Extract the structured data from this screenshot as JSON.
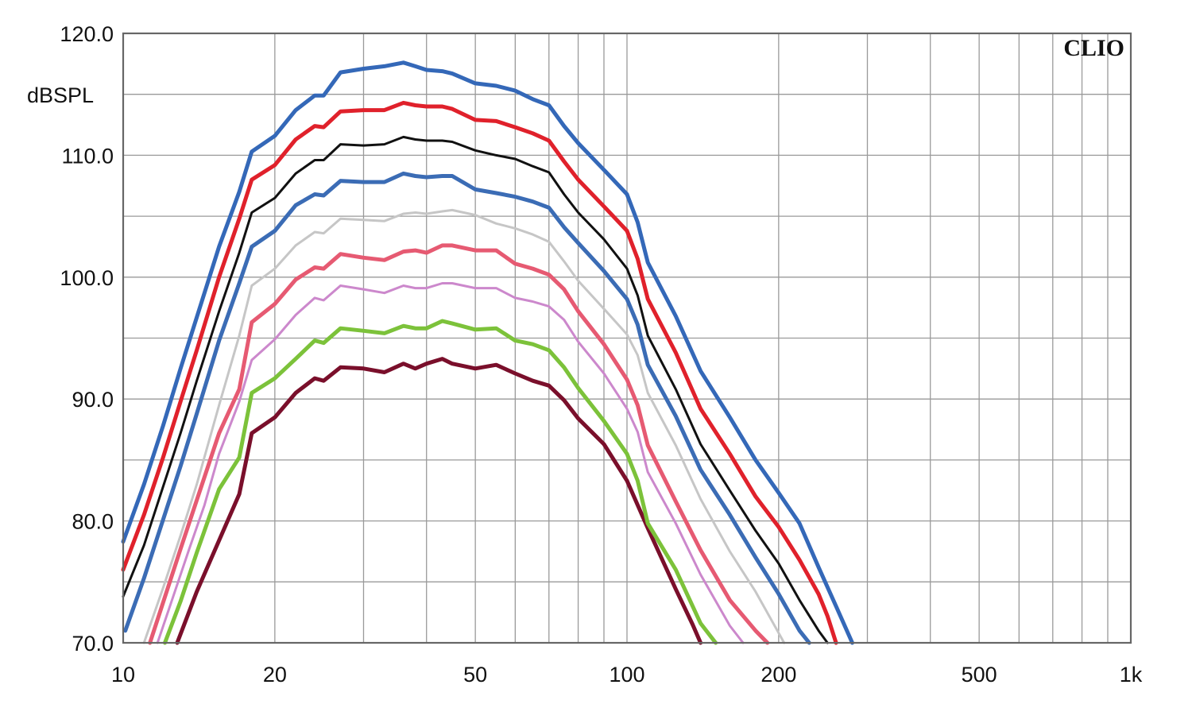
{
  "brand": "CLIO",
  "chart_data": {
    "type": "line",
    "title": "",
    "xlabel": "",
    "ylabel": "dBSPL",
    "x_scale": "log",
    "xlim": [
      10,
      1000
    ],
    "ylim": [
      70,
      120
    ],
    "grid": true,
    "x_ticks": [
      {
        "value": 10,
        "label": "10"
      },
      {
        "value": 20,
        "label": "20"
      },
      {
        "value": 50,
        "label": "50"
      },
      {
        "value": 100,
        "label": "100"
      },
      {
        "value": 200,
        "label": "200"
      },
      {
        "value": 500,
        "label": "500"
      },
      {
        "value": 1000,
        "label": "1k"
      }
    ],
    "y_ticks": [
      {
        "value": 70,
        "label": "70.0"
      },
      {
        "value": 80,
        "label": "80.0"
      },
      {
        "value": 90,
        "label": "90.0"
      },
      {
        "value": 100,
        "label": "100.0"
      },
      {
        "value": 110,
        "label": "110.0"
      },
      {
        "value": 120,
        "label": "120.0"
      }
    ],
    "series": [
      {
        "color": "#7a0f2b",
        "x": [
          12.8,
          14,
          15.5,
          17,
          18,
          20,
          22,
          24,
          25,
          27,
          30,
          33,
          36,
          38,
          40,
          43,
          45,
          50,
          55,
          60,
          65,
          70,
          75,
          80,
          90,
          100,
          110,
          125,
          135,
          140
        ],
        "y": [
          70,
          74.2,
          78.4,
          82.2,
          87.2,
          88.5,
          90.5,
          91.7,
          91.5,
          92.6,
          92.5,
          92.2,
          92.9,
          92.5,
          92.9,
          93.3,
          92.9,
          92.5,
          92.8,
          92.1,
          91.5,
          91.1,
          89.9,
          88.4,
          86.3,
          83.3,
          79.4,
          74.4,
          71.5,
          70
        ]
      },
      {
        "color": "#7cc23a",
        "x": [
          12.1,
          13,
          14,
          15.5,
          17,
          18,
          20,
          22,
          24,
          25,
          27,
          30,
          33,
          36,
          38,
          40,
          43,
          45,
          50,
          55,
          60,
          65,
          70,
          75,
          80,
          90,
          100,
          105,
          110,
          125,
          140,
          150
        ],
        "y": [
          70,
          73.4,
          77.4,
          82.6,
          85.2,
          90.5,
          91.7,
          93.3,
          94.8,
          94.6,
          95.8,
          95.6,
          95.4,
          96.0,
          95.8,
          95.8,
          96.4,
          96.2,
          95.7,
          95.8,
          94.8,
          94.5,
          94.0,
          92.6,
          90.9,
          88.2,
          85.5,
          83.3,
          79.8,
          76.0,
          71.6,
          70
        ]
      },
      {
        "color": "#cc88cc",
        "x": [
          11.7,
          12.5,
          13.5,
          14.5,
          15.5,
          17,
          18,
          20,
          22,
          24,
          25,
          27,
          30,
          33,
          36,
          38,
          40,
          43,
          45,
          50,
          55,
          60,
          65,
          70,
          75,
          80,
          90,
          100,
          105,
          110,
          125,
          140,
          160,
          170
        ],
        "y": [
          70,
          73.5,
          77.6,
          81.3,
          85.5,
          89.8,
          93.2,
          94.9,
          96.9,
          98.3,
          98.1,
          99.3,
          99.0,
          98.7,
          99.3,
          99.1,
          99.1,
          99.5,
          99.5,
          99.1,
          99.1,
          98.3,
          98.0,
          97.6,
          96.5,
          94.7,
          92.1,
          89.2,
          87.3,
          84.0,
          79.8,
          75.6,
          71.4,
          70
        ]
      },
      {
        "color": "#e65a72",
        "x": [
          11.3,
          12,
          13,
          14,
          15.5,
          17,
          18,
          20,
          22,
          24,
          25,
          27,
          30,
          33,
          36,
          38,
          40,
          43,
          45,
          50,
          55,
          60,
          65,
          70,
          75,
          80,
          90,
          100,
          105,
          110,
          125,
          140,
          160,
          180,
          190
        ],
        "y": [
          70,
          73.3,
          77.7,
          81.7,
          87.2,
          90.8,
          96.3,
          97.8,
          99.8,
          100.8,
          100.7,
          101.9,
          101.6,
          101.4,
          102.1,
          102.2,
          102.0,
          102.6,
          102.6,
          102.2,
          102.2,
          101.1,
          100.7,
          100.2,
          99.0,
          97.2,
          94.5,
          91.6,
          89.5,
          86.2,
          81.6,
          77.6,
          73.5,
          71.0,
          70
        ]
      },
      {
        "color": "#c6c6c6",
        "x": [
          11,
          12,
          13,
          14,
          15.5,
          17,
          18,
          20,
          22,
          24,
          25,
          27,
          30,
          33,
          36,
          38,
          40,
          43,
          45,
          50,
          55,
          60,
          65,
          70,
          75,
          80,
          90,
          100,
          105,
          110,
          125,
          140,
          160,
          180,
          200,
          205
        ],
        "y": [
          70,
          74.5,
          78.8,
          83.0,
          89.5,
          95.2,
          99.3,
          100.7,
          102.6,
          103.7,
          103.6,
          104.8,
          104.7,
          104.6,
          105.2,
          105.3,
          105.2,
          105.4,
          105.5,
          105.1,
          104.4,
          104.0,
          103.5,
          102.9,
          101.3,
          99.7,
          97.4,
          95.3,
          93.6,
          90.5,
          86.2,
          81.8,
          77.5,
          74.2,
          70.8,
          70
        ]
      },
      {
        "color": "#3b6cb5",
        "x": [
          10.1,
          11,
          12,
          13,
          14,
          15.5,
          17,
          18,
          20,
          22,
          24,
          25,
          27,
          30,
          33,
          36,
          38,
          40,
          43,
          45,
          50,
          55,
          60,
          65,
          70,
          75,
          80,
          90,
          100,
          105,
          110,
          125,
          140,
          160,
          180,
          200,
          220,
          230
        ],
        "y": [
          71,
          75.3,
          80.1,
          84.5,
          88.8,
          94.8,
          99.5,
          102.5,
          103.8,
          105.9,
          106.8,
          106.7,
          107.9,
          107.8,
          107.8,
          108.5,
          108.3,
          108.2,
          108.3,
          108.3,
          107.2,
          106.9,
          106.6,
          106.2,
          105.7,
          104.1,
          102.8,
          100.5,
          98.2,
          96.1,
          92.8,
          88.6,
          84.2,
          80.5,
          77.0,
          74.0,
          71.0,
          70
        ]
      },
      {
        "color": "#111111",
        "x": [
          10,
          11,
          12,
          13,
          14,
          15.5,
          17,
          18,
          20,
          22,
          24,
          25,
          27,
          30,
          33,
          36,
          38,
          40,
          43,
          45,
          50,
          55,
          60,
          65,
          70,
          75,
          80,
          90,
          100,
          105,
          110,
          125,
          140,
          160,
          180,
          200,
          220,
          240,
          250
        ],
        "y": [
          73.8,
          78.0,
          82.8,
          87.2,
          91.5,
          97.2,
          102.0,
          105.3,
          106.5,
          108.5,
          109.6,
          109.6,
          110.9,
          110.8,
          110.9,
          111.5,
          111.3,
          111.2,
          111.2,
          111.1,
          110.4,
          110.0,
          109.7,
          109.1,
          108.6,
          106.8,
          105.3,
          103.1,
          100.7,
          98.5,
          95.2,
          90.8,
          86.3,
          82.5,
          79.2,
          76.5,
          73.5,
          71.0,
          70
        ]
      },
      {
        "color": "#e0212b",
        "x": [
          10,
          11,
          12,
          13,
          14,
          15.5,
          17,
          18,
          20,
          22,
          24,
          25,
          27,
          30,
          33,
          36,
          38,
          40,
          43,
          45,
          50,
          55,
          60,
          65,
          70,
          75,
          80,
          90,
          100,
          105,
          110,
          125,
          140,
          160,
          180,
          200,
          220,
          240,
          250,
          260
        ],
        "y": [
          76.0,
          80.5,
          85.2,
          89.8,
          94.0,
          100.0,
          104.8,
          108.0,
          109.2,
          111.3,
          112.4,
          112.3,
          113.6,
          113.7,
          113.7,
          114.3,
          114.1,
          114.0,
          114.0,
          113.8,
          112.9,
          112.8,
          112.3,
          111.8,
          111.2,
          109.5,
          108.0,
          105.8,
          103.8,
          101.5,
          98.2,
          93.8,
          89.2,
          85.5,
          82.0,
          79.5,
          76.8,
          74.0,
          72.2,
          70
        ]
      },
      {
        "color": "#3468b8",
        "x": [
          10,
          11,
          12,
          13,
          14,
          15.5,
          17,
          18,
          20,
          22,
          24,
          25,
          27,
          30,
          33,
          36,
          38,
          40,
          43,
          45,
          50,
          55,
          60,
          65,
          70,
          75,
          80,
          90,
          100,
          105,
          110,
          125,
          140,
          160,
          180,
          200,
          220,
          240,
          260,
          280
        ],
        "y": [
          78.3,
          83.0,
          87.8,
          92.5,
          96.7,
          102.5,
          107.0,
          110.3,
          111.6,
          113.7,
          114.9,
          114.9,
          116.8,
          117.1,
          117.3,
          117.6,
          117.3,
          117.0,
          116.9,
          116.7,
          115.9,
          115.7,
          115.3,
          114.6,
          114.1,
          112.4,
          111.0,
          108.8,
          106.8,
          104.5,
          101.2,
          96.8,
          92.3,
          88.5,
          85.0,
          82.3,
          79.8,
          76.2,
          73.0,
          70
        ]
      }
    ]
  }
}
